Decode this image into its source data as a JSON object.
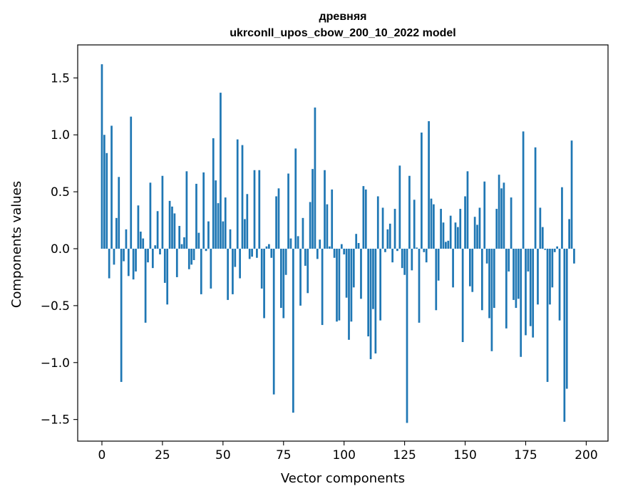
{
  "chart_data": {
    "type": "bar",
    "title_line1": "древняя",
    "title_line2": "ukrconll_upos_cbow_200_10_2022 model",
    "xlabel": "Vector components",
    "ylabel": "Components values",
    "xlim": [
      -10,
      209
    ],
    "ylim": [
      -1.69,
      1.79
    ],
    "x_ticks": [
      0,
      25,
      50,
      75,
      100,
      125,
      150,
      175,
      200
    ],
    "x_tick_labels": [
      "0",
      "25",
      "50",
      "75",
      "100",
      "125",
      "150",
      "175",
      "200"
    ],
    "y_ticks": [
      1.5,
      1.0,
      0.5,
      0.0,
      -0.5,
      -1.0,
      -1.5
    ],
    "y_tick_labels": [
      "1.5",
      "1.0",
      "0.5",
      "0.0",
      "−0.5",
      "−1.0",
      "−1.5"
    ],
    "bar_color": "#1f77b4",
    "values": [
      1.62,
      1.0,
      0.84,
      -0.26,
      1.08,
      -0.14,
      0.27,
      0.63,
      -1.17,
      -0.11,
      0.17,
      -0.24,
      1.16,
      -0.27,
      -0.2,
      0.38,
      0.15,
      0.09,
      -0.65,
      -0.12,
      0.58,
      -0.17,
      0.03,
      0.33,
      -0.05,
      0.64,
      -0.3,
      -0.49,
      0.42,
      0.37,
      0.31,
      -0.25,
      0.2,
      0.04,
      0.1,
      0.68,
      -0.18,
      -0.14,
      -0.1,
      0.57,
      0.14,
      -0.4,
      0.67,
      -0.02,
      0.24,
      -0.35,
      0.97,
      0.6,
      0.4,
      1.37,
      0.24,
      0.45,
      -0.45,
      0.17,
      -0.4,
      -0.16,
      0.96,
      -0.26,
      0.91,
      0.26,
      0.48,
      -0.09,
      -0.07,
      0.69,
      -0.08,
      0.69,
      -0.35,
      -0.61,
      0.02,
      0.04,
      -0.08,
      -1.28,
      0.46,
      0.53,
      -0.52,
      -0.61,
      -0.23,
      0.66,
      0.09,
      -1.44,
      0.88,
      0.11,
      -0.5,
      0.27,
      -0.15,
      -0.39,
      0.41,
      0.7,
      1.24,
      -0.09,
      0.08,
      -0.67,
      0.69,
      0.39,
      0.02,
      0.52,
      -0.08,
      -0.64,
      -0.63,
      0.04,
      -0.05,
      -0.43,
      -0.8,
      -0.64,
      -0.34,
      0.13,
      0.05,
      -0.44,
      0.55,
      0.52,
      -0.77,
      -0.97,
      -0.53,
      -0.92,
      0.46,
      -0.63,
      0.36,
      -0.03,
      0.17,
      0.22,
      -0.12,
      0.35,
      -0.02,
      0.73,
      -0.17,
      -0.23,
      -1.53,
      0.64,
      -0.19,
      0.43,
      0.01,
      -0.65,
      1.02,
      -0.03,
      -0.12,
      1.12,
      0.44,
      0.39,
      -0.54,
      -0.28,
      0.35,
      0.23,
      0.06,
      0.07,
      0.29,
      -0.34,
      0.23,
      0.19,
      0.35,
      -0.82,
      0.46,
      0.68,
      -0.33,
      -0.38,
      0.28,
      0.21,
      0.36,
      -0.54,
      0.59,
      -0.13,
      -0.61,
      -0.9,
      -0.52,
      0.35,
      0.65,
      0.53,
      0.58,
      -0.7,
      -0.2,
      0.45,
      -0.45,
      -0.52,
      -0.44,
      -0.95,
      1.03,
      -0.76,
      -0.2,
      -0.68,
      -0.78,
      0.89,
      -0.49,
      0.36,
      0.19,
      -0.01,
      -1.17,
      -0.49,
      -0.34,
      -0.03,
      0.02,
      -0.63,
      0.54,
      -1.52,
      -1.23,
      0.26,
      0.95,
      -0.13
    ]
  }
}
